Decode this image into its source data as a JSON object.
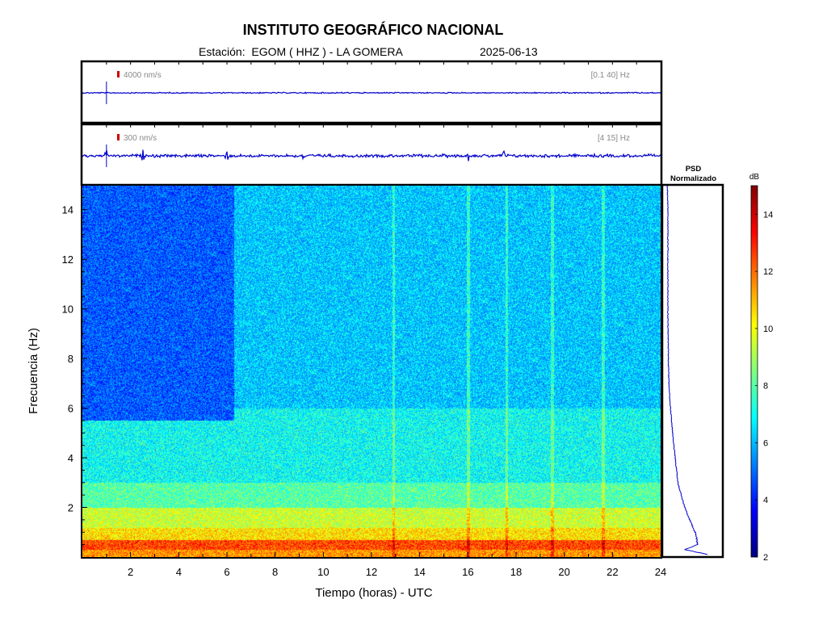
{
  "header": {
    "title": "INSTITUTO GEOGRÁFICO NACIONAL",
    "station_prefix": "Estación:",
    "station_name": "EGOM ( HHZ ) - LA GOMERA",
    "date": "2025-06-13"
  },
  "colors": {
    "trace": "#0000cc",
    "scale_bar": "#cc0000",
    "annotation_text": "#888888",
    "colormap": [
      "#00007f",
      "#0000ff",
      "#007fff",
      "#00ffff",
      "#7fff7f",
      "#ffff00",
      "#ff7f00",
      "#ff0000",
      "#7f0000"
    ]
  },
  "chart_data": [
    {
      "type": "line",
      "panel": "seismogram-broadband",
      "amplitude_scale_label": "4000 nm/s",
      "band_label": "[0.1 40] Hz",
      "x_range": [
        0,
        24
      ],
      "events_hours": [
        1.0
      ]
    },
    {
      "type": "line",
      "panel": "seismogram-filtered",
      "amplitude_scale_label": "300 nm/s",
      "band_label": "[4 15] Hz",
      "x_range": [
        0,
        24
      ],
      "events_hours": [
        1.0,
        2.5,
        6.0,
        9.2,
        16.0,
        17.5
      ]
    },
    {
      "type": "heatmap",
      "panel": "spectrogram",
      "xlabel": "Tiempo (horas) - UTC",
      "ylabel": "Frecuencia  (Hz)",
      "xlim": [
        0,
        24
      ],
      "ylim": [
        0,
        15
      ],
      "x_ticks": [
        2,
        4,
        6,
        8,
        10,
        12,
        14,
        16,
        18,
        20,
        22,
        24
      ],
      "y_ticks": [
        2,
        4,
        6,
        8,
        10,
        12,
        14
      ],
      "colorbar": {
        "label": "dB",
        "range": [
          2,
          15
        ],
        "ticks": [
          2,
          4,
          6,
          8,
          10,
          12,
          14
        ]
      },
      "band_levels_db": [
        {
          "freq": [
            0.0,
            0.3
          ],
          "db": 11.5
        },
        {
          "freq": [
            0.3,
            0.7
          ],
          "db": 12.5
        },
        {
          "freq": [
            0.7,
            1.2
          ],
          "db": 10.5
        },
        {
          "freq": [
            1.2,
            2.0
          ],
          "db": 9.5
        },
        {
          "freq": [
            2.0,
            3.0
          ],
          "db": 8.0
        },
        {
          "freq": [
            3.0,
            6.0
          ],
          "db": 7.0
        },
        {
          "freq": [
            6.0,
            15.0
          ],
          "db": 6.2
        }
      ],
      "quiet_region": {
        "hours": [
          0,
          6.3
        ],
        "freq": [
          5.5,
          15
        ],
        "db": 4.8
      },
      "vertical_lines_hours": [
        12.9,
        16.0,
        17.6,
        19.5,
        21.6
      ]
    },
    {
      "type": "line",
      "panel": "psd-normalized",
      "title": "PSD\nNormalizado",
      "freq": [
        0.1,
        0.3,
        0.5,
        1.0,
        1.5,
        2.0,
        3.0,
        4.0,
        5.0,
        6.0,
        7.0,
        8.0,
        10.0,
        12.0,
        14.0,
        15.0
      ],
      "values": [
        0.8,
        0.35,
        0.6,
        0.55,
        0.45,
        0.35,
        0.22,
        0.17,
        0.12,
        0.08,
        0.05,
        0.04,
        0.03,
        0.03,
        0.03,
        0.02
      ]
    }
  ]
}
